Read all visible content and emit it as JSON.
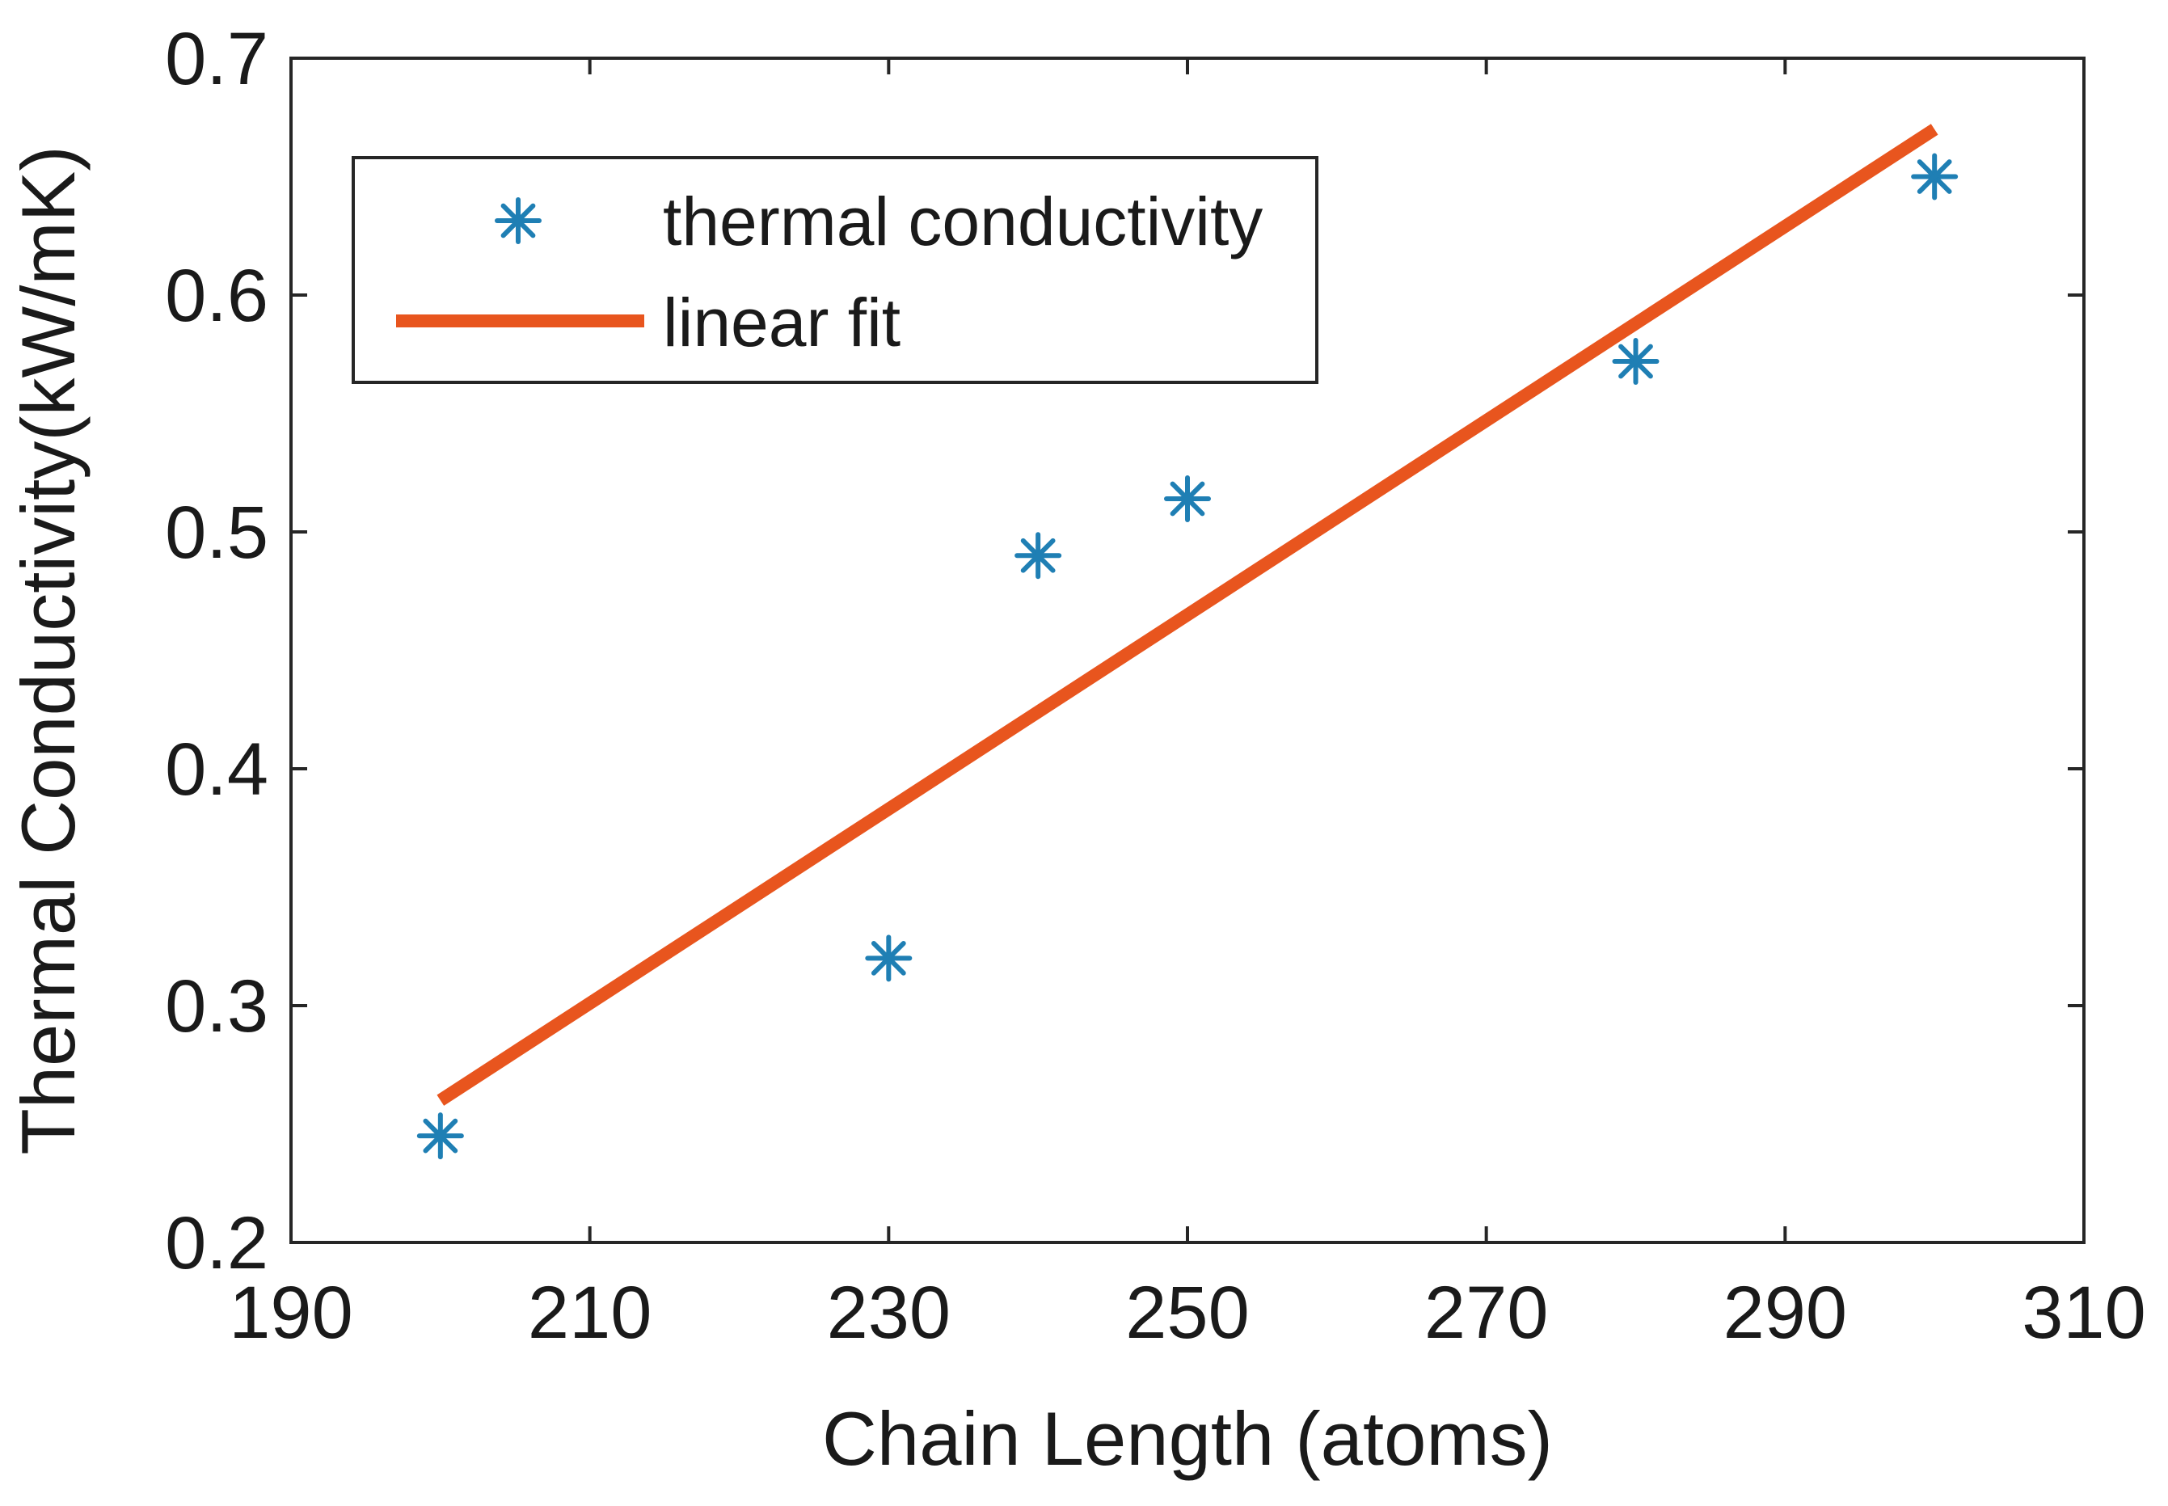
{
  "chart_data": {
    "type": "scatter",
    "title": "",
    "xlabel": "Chain Length (atoms)",
    "ylabel": "Thermal Conductivity(kW/mK)",
    "xlim": [
      190,
      310
    ],
    "ylim": [
      0.2,
      0.7
    ],
    "xticks": [
      190,
      210,
      230,
      250,
      270,
      290,
      310
    ],
    "xtick_labels": [
      "190",
      "210",
      "230",
      "250",
      "270",
      "290",
      "310"
    ],
    "yticks": [
      0.2,
      0.3,
      0.4,
      0.5,
      0.6,
      0.7
    ],
    "ytick_labels": [
      "0.2",
      "0.3",
      "0.4",
      "0.5",
      "0.6",
      "0.7"
    ],
    "grid": false,
    "legend_position": "top-left",
    "series": [
      {
        "name": "thermal conductivity",
        "kind": "scatter",
        "marker": "asterisk",
        "color": "#1f7fb4",
        "x": [
          200,
          230,
          240,
          250,
          280,
          300
        ],
        "y": [
          0.245,
          0.32,
          0.49,
          0.514,
          0.572,
          0.65
        ]
      },
      {
        "name": "linear fit",
        "kind": "line",
        "color": "#e8551e",
        "x": [
          200,
          300
        ],
        "y": [
          0.26,
          0.67
        ]
      }
    ]
  }
}
